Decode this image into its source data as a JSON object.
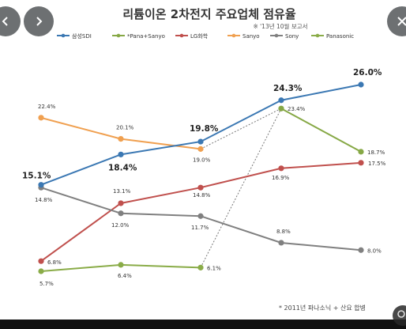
{
  "viewer": {
    "prev_icon": "chevron-left-icon",
    "next_icon": "chevron-right-icon",
    "close_icon": "close-icon",
    "lens_icon": "lens-icon"
  },
  "chart_data": {
    "type": "line",
    "title": "리튬이온 2차전지 주요업체 점유율",
    "subtitle": "※ '13년 10월 보고서",
    "footnote": "* 2011년 파나소닉 + 산요 합병",
    "categories": [
      "",
      "",
      "",
      "",
      ""
    ],
    "series": [
      {
        "name": "삼성SDI",
        "color": "#3b78b3",
        "values": [
          15.1,
          18.4,
          19.8,
          24.3,
          26.0
        ],
        "bold": true,
        "dash": false
      },
      {
        "name": "*Pana+Sanyo",
        "color": "#86a845",
        "values": [
          null,
          null,
          null,
          23.4,
          18.7
        ],
        "bold": false,
        "dash": false
      },
      {
        "name": "LG화학",
        "color": "#c0504d",
        "values": [
          6.8,
          13.1,
          14.8,
          16.9,
          17.5
        ],
        "bold": false,
        "dash": false
      },
      {
        "name": "Sanyo",
        "color": "#f0a050",
        "values": [
          22.4,
          20.1,
          19.0,
          null,
          null
        ],
        "bold": false,
        "dash": false
      },
      {
        "name": "Sony",
        "color": "#808080",
        "values": [
          14.8,
          12.0,
          11.7,
          8.8,
          8.0
        ],
        "bold": false,
        "dash": false
      },
      {
        "name": "Panasonic",
        "color": "#8aac48",
        "values": [
          5.7,
          6.4,
          6.1,
          null,
          null
        ],
        "bold": false,
        "dash": false
      }
    ],
    "merge_connectors": [
      {
        "from_series": "Sanyo",
        "from_index": 2,
        "to_series": "*Pana+Sanyo",
        "to_index": 3
      },
      {
        "from_series": "Panasonic",
        "from_index": 2,
        "to_series": "*Pana+Sanyo",
        "to_index": 3
      }
    ],
    "data_labels": [
      {
        "series": "삼성SDI",
        "index": 0,
        "text": "15.1%",
        "bold": true
      },
      {
        "series": "삼성SDI",
        "index": 1,
        "text": "18.4%",
        "bold": true
      },
      {
        "series": "삼성SDI",
        "index": 2,
        "text": "19.8%",
        "bold": true
      },
      {
        "series": "삼성SDI",
        "index": 3,
        "text": "24.3%",
        "bold": true
      },
      {
        "series": "삼성SDI",
        "index": 4,
        "text": "26.0%",
        "bold": true
      },
      {
        "series": "*Pana+Sanyo",
        "index": 3,
        "text": "23.4%",
        "bold": false
      },
      {
        "series": "*Pana+Sanyo",
        "index": 4,
        "text": "18.7%",
        "bold": false
      },
      {
        "series": "LG화학",
        "index": 0,
        "text": "6.8%",
        "bold": false
      },
      {
        "series": "LG화학",
        "index": 1,
        "text": "13.1%",
        "bold": false
      },
      {
        "series": "LG화학",
        "index": 2,
        "text": "14.8%",
        "bold": false
      },
      {
        "series": "LG화학",
        "index": 3,
        "text": "16.9%",
        "bold": false
      },
      {
        "series": "LG화학",
        "index": 4,
        "text": "17.5%",
        "bold": false
      },
      {
        "series": "Sanyo",
        "index": 0,
        "text": "22.4%",
        "bold": false
      },
      {
        "series": "Sanyo",
        "index": 1,
        "text": "20.1%",
        "bold": false
      },
      {
        "series": "Sanyo",
        "index": 2,
        "text": "19.0%",
        "bold": false
      },
      {
        "series": "Sony",
        "index": 0,
        "text": "14.8%",
        "bold": false
      },
      {
        "series": "Sony",
        "index": 1,
        "text": "12.0%",
        "bold": false
      },
      {
        "series": "Sony",
        "index": 2,
        "text": "11.7%",
        "bold": false
      },
      {
        "series": "Sony",
        "index": 3,
        "text": "8.8%",
        "bold": false
      },
      {
        "series": "Sony",
        "index": 4,
        "text": "8.0%",
        "bold": false
      },
      {
        "series": "Panasonic",
        "index": 0,
        "text": "5.7%",
        "bold": false
      },
      {
        "series": "Panasonic",
        "index": 1,
        "text": "6.4%",
        "bold": false
      },
      {
        "series": "Panasonic",
        "index": 2,
        "text": "6.1%",
        "bold": false
      }
    ],
    "legend_position": "top",
    "ylim": [
      4,
      27
    ],
    "grid": false
  }
}
